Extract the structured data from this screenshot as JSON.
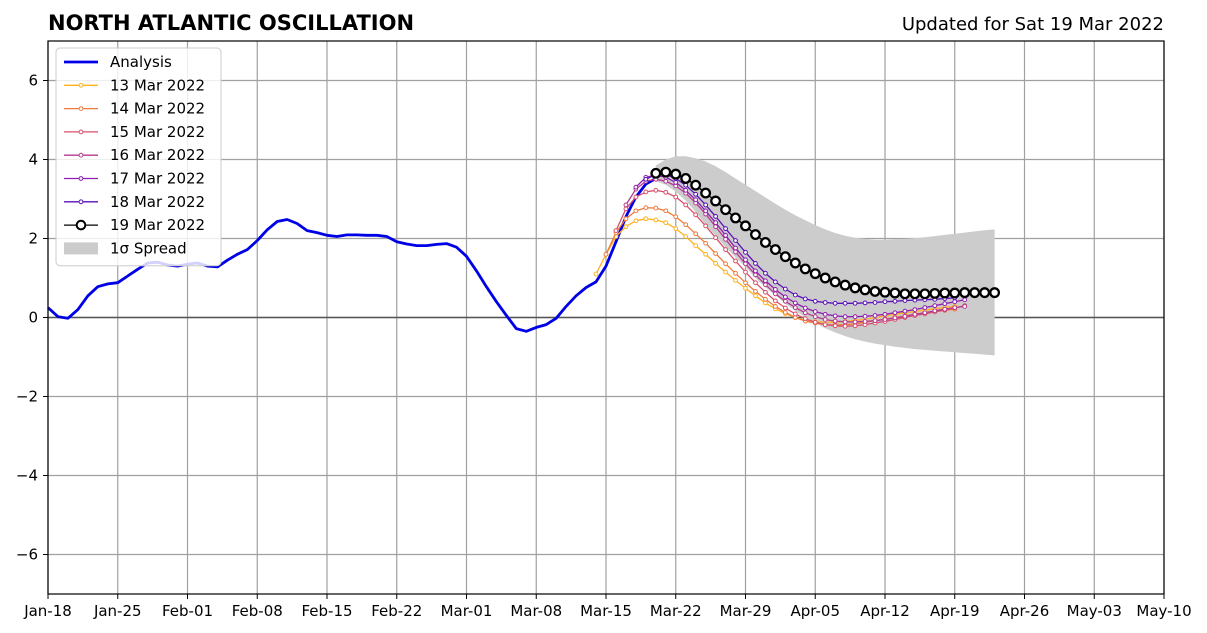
{
  "chart_data": {
    "type": "line",
    "title": "NORTH ATLANTIC OSCILLATION",
    "subtitle": "Updated for Sat 19 Mar 2022",
    "xlabel": "",
    "ylabel": "",
    "x_range": [
      "2022-01-18",
      "2022-05-10"
    ],
    "ylim": [
      -7,
      7
    ],
    "x_ticks": [
      "Jan-18",
      "Jan-25",
      "Feb-01",
      "Feb-08",
      "Feb-15",
      "Feb-22",
      "Mar-01",
      "Mar-08",
      "Mar-15",
      "Mar-22",
      "Mar-29",
      "Apr-05",
      "Apr-12",
      "Apr-19",
      "Apr-26",
      "May-03",
      "May-10"
    ],
    "y_ticks": [
      "−6",
      "−4",
      "−2",
      "0",
      "2",
      "4",
      "6"
    ],
    "grid": true,
    "legend_position": "top-left",
    "series": [
      {
        "name": "Analysis",
        "color": "#0000e6",
        "style": "analysis",
        "start": "2022-01-18",
        "values": [
          0.25,
          0.02,
          -0.02,
          0.2,
          0.55,
          0.78,
          0.85,
          0.88,
          1.05,
          1.22,
          1.38,
          1.4,
          1.33,
          1.3,
          1.35,
          1.38,
          1.3,
          1.28,
          1.45,
          1.6,
          1.72,
          1.95,
          2.22,
          2.43,
          2.48,
          2.38,
          2.2,
          2.15,
          2.08,
          2.05,
          2.09,
          2.09,
          2.08,
          2.08,
          2.05,
          1.92,
          1.86,
          1.82,
          1.82,
          1.85,
          1.87,
          1.78,
          1.55,
          1.18,
          0.78,
          0.4,
          0.05,
          -0.28,
          -0.35,
          -0.25,
          -0.18,
          -0.02,
          0.28,
          0.55,
          0.76,
          0.9,
          1.3,
          1.92,
          2.55,
          3.05,
          3.38,
          3.52
        ]
      },
      {
        "name": "13 Mar 2022",
        "color": "#ffb21f",
        "style": "forecast",
        "start": "2022-03-14",
        "values": [
          1.1,
          1.6,
          2.05,
          2.3,
          2.45,
          2.5,
          2.47,
          2.4,
          2.25,
          2.05,
          1.82,
          1.6,
          1.37,
          1.15,
          0.94,
          0.74,
          0.55,
          0.37,
          0.22,
          0.1,
          0.0,
          -0.07,
          -0.11,
          -0.12,
          -0.12,
          -0.1,
          -0.08,
          -0.04,
          0.0,
          0.04,
          0.08,
          0.12,
          0.15,
          0.19,
          0.22,
          0.25,
          0.28
        ]
      },
      {
        "name": "14 Mar 2022",
        "color": "#f07a3c",
        "style": "forecast",
        "start": "2022-03-15",
        "values": [
          1.6,
          2.15,
          2.5,
          2.7,
          2.78,
          2.77,
          2.7,
          2.55,
          2.35,
          2.12,
          1.88,
          1.62,
          1.36,
          1.12,
          0.88,
          0.66,
          0.46,
          0.28,
          0.13,
          0.0,
          -0.09,
          -0.14,
          -0.18,
          -0.19,
          -0.18,
          -0.16,
          -0.12,
          -0.08,
          -0.04,
          0.0,
          0.04,
          0.08,
          0.12,
          0.15,
          0.18,
          0.21
        ]
      },
      {
        "name": "15 Mar 2022",
        "color": "#d94f6b",
        "style": "forecast",
        "start": "2022-03-16",
        "values": [
          2.2,
          2.75,
          3.05,
          3.18,
          3.22,
          3.17,
          3.05,
          2.85,
          2.6,
          2.32,
          2.02,
          1.72,
          1.43,
          1.15,
          0.88,
          0.64,
          0.42,
          0.24,
          0.09,
          -0.03,
          -0.12,
          -0.18,
          -0.21,
          -0.22,
          -0.21,
          -0.18,
          -0.14,
          -0.1,
          -0.05,
          0.0,
          0.05,
          0.09,
          0.14,
          0.19,
          0.24,
          0.3
        ]
      },
      {
        "name": "16 Mar 2022",
        "color": "#b53a8f",
        "style": "forecast",
        "start": "2022-03-17",
        "values": [
          2.85,
          3.25,
          3.45,
          3.5,
          3.45,
          3.33,
          3.15,
          2.9,
          2.62,
          2.3,
          1.98,
          1.66,
          1.36,
          1.08,
          0.83,
          0.6,
          0.41,
          0.25,
          0.12,
          0.02,
          -0.05,
          -0.09,
          -0.11,
          -0.11,
          -0.1,
          -0.08,
          -0.05,
          -0.01,
          0.03,
          0.08,
          0.12,
          0.17,
          0.21,
          0.25,
          0.28
        ]
      },
      {
        "name": "17 Mar 2022",
        "color": "#8e1fb0",
        "style": "forecast",
        "start": "2022-03-18",
        "values": [
          3.3,
          3.55,
          3.6,
          3.55,
          3.42,
          3.22,
          2.98,
          2.7,
          2.4,
          2.08,
          1.76,
          1.46,
          1.18,
          0.93,
          0.71,
          0.52,
          0.37,
          0.24,
          0.15,
          0.08,
          0.04,
          0.02,
          0.02,
          0.03,
          0.05,
          0.08,
          0.12,
          0.16,
          0.2,
          0.25,
          0.3,
          0.35,
          0.4,
          0.45
        ]
      },
      {
        "name": "18 Mar 2022",
        "color": "#5b0fb8",
        "style": "forecast",
        "start": "2022-03-19",
        "values": [
          3.5,
          3.62,
          3.62,
          3.52,
          3.35,
          3.12,
          2.85,
          2.56,
          2.25,
          1.95,
          1.65,
          1.37,
          1.12,
          0.9,
          0.72,
          0.57,
          0.47,
          0.41,
          0.38,
          0.36,
          0.36,
          0.36,
          0.37,
          0.38,
          0.4,
          0.41,
          0.43,
          0.44,
          0.45,
          0.46,
          0.48,
          0.5
        ]
      },
      {
        "name": "19 Mar 2022",
        "color": "#000000",
        "style": "latest",
        "start": "2022-03-20",
        "values": [
          3.65,
          3.68,
          3.63,
          3.52,
          3.35,
          3.15,
          2.95,
          2.73,
          2.52,
          2.32,
          2.1,
          1.9,
          1.72,
          1.54,
          1.38,
          1.23,
          1.11,
          1.0,
          0.9,
          0.82,
          0.75,
          0.7,
          0.66,
          0.64,
          0.62,
          0.6,
          0.6,
          0.6,
          0.61,
          0.62,
          0.62,
          0.63,
          0.63,
          0.63,
          0.63
        ]
      }
    ],
    "spread": {
      "name": "1σ Spread",
      "color": "#cccccc",
      "start": "2022-03-20",
      "upper": [
        3.85,
        4.0,
        4.08,
        4.08,
        4.03,
        3.95,
        3.83,
        3.68,
        3.52,
        3.36,
        3.2,
        3.04,
        2.88,
        2.73,
        2.59,
        2.46,
        2.34,
        2.23,
        2.14,
        2.07,
        2.02,
        1.99,
        1.97,
        1.97,
        1.98,
        1.99,
        2.01,
        2.03,
        2.06,
        2.09,
        2.12,
        2.15,
        2.18,
        2.21,
        2.23
      ],
      "lower": [
        3.45,
        3.36,
        3.18,
        2.96,
        2.67,
        2.35,
        2.07,
        1.78,
        1.52,
        1.28,
        1.0,
        0.76,
        0.56,
        0.35,
        0.17,
        0.0,
        -0.14,
        -0.27,
        -0.38,
        -0.47,
        -0.55,
        -0.61,
        -0.66,
        -0.7,
        -0.74,
        -0.77,
        -0.8,
        -0.82,
        -0.84,
        -0.86,
        -0.88,
        -0.9,
        -0.92,
        -0.94,
        -0.96
      ]
    }
  }
}
